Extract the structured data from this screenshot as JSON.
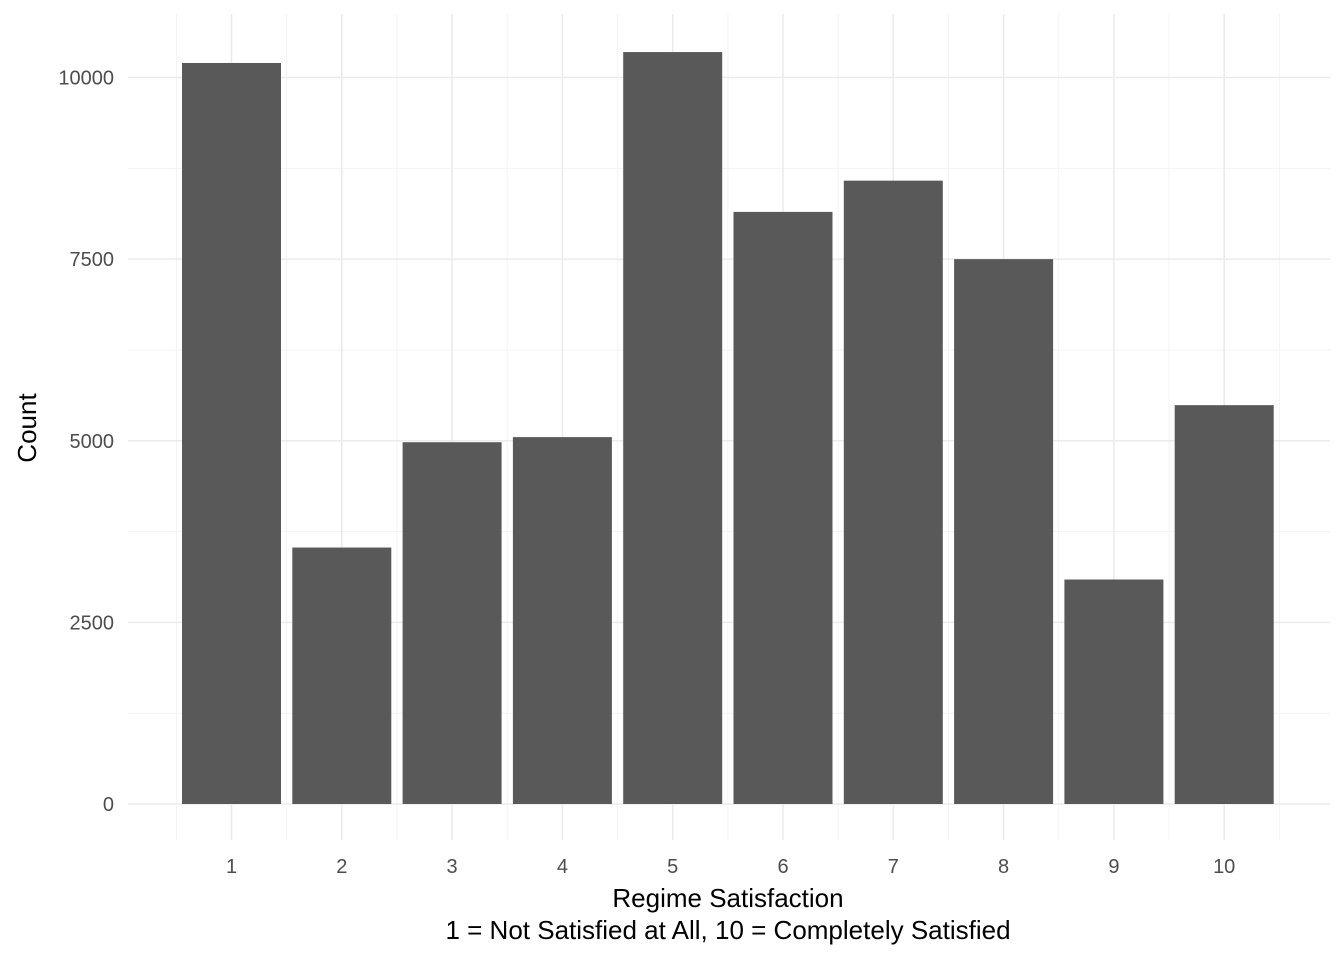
{
  "chart_data": {
    "type": "bar",
    "categories": [
      "1",
      "2",
      "3",
      "4",
      "5",
      "6",
      "7",
      "8",
      "9",
      "10"
    ],
    "values": [
      10200,
      3530,
      4980,
      5050,
      10350,
      8150,
      8580,
      7500,
      3090,
      5490
    ],
    "xlabel_line1": "Regime Satisfaction",
    "xlabel_line2": "1 = Not Satisfied at All, 10 = Completely Satisfied",
    "ylabel": "Count",
    "ylim": [
      0,
      10600
    ],
    "yticks": [
      0,
      2500,
      5000,
      7500,
      10000
    ],
    "ytick_labels": [
      "0",
      "2500",
      "5000",
      "7500",
      "10000"
    ],
    "grid": true,
    "bar_color": "#595959",
    "grid_color": "#ebebeb",
    "background": "#ffffff"
  }
}
